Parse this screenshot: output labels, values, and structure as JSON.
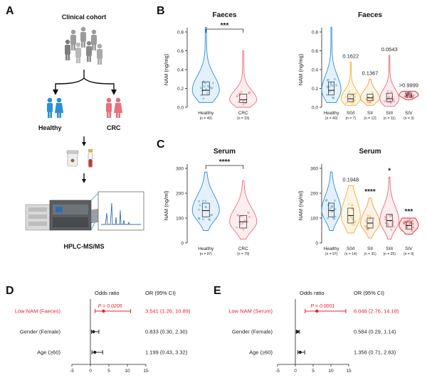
{
  "colors": {
    "healthy": "#2b8fd6",
    "crc": "#e8707a",
    "s0": "#f2b134",
    "s2": "#f0a03c",
    "s3": "#e36a7b",
    "s4": "#e0252b",
    "forest_highlight": "#e0252b",
    "axis": "#222222"
  },
  "panel_a": {
    "label": "A",
    "cohort_title": "Clinical cohort",
    "healthy_label": "Healthy",
    "crc_label": "CRC",
    "method_label": "HPLC-MS/MS"
  },
  "chart_data": [
    {
      "id": "B-left",
      "panel": "B",
      "type": "violin",
      "title": "Faeces",
      "ylabel": "NAM (ng/mg)",
      "ylim": [
        0,
        0.8
      ],
      "yticks": [
        0.0,
        0.2,
        0.4,
        0.6,
        0.8
      ],
      "groups": [
        {
          "name": "Healthy",
          "n": "(n = 40)",
          "color": "#2b8fd6",
          "min": 0.05,
          "q1": 0.13,
          "median": 0.18,
          "q3": 0.27,
          "max": 0.85
        },
        {
          "name": "CRC",
          "n": "(n = 33)",
          "color": "#e8707a",
          "min": 0.0,
          "q1": 0.05,
          "median": 0.08,
          "q3": 0.14,
          "max": 0.6
        }
      ],
      "brackets": [
        {
          "from": 0,
          "to": 1,
          "label": "***"
        }
      ],
      "annotations": []
    },
    {
      "id": "B-right",
      "panel": "",
      "type": "violin",
      "title": "Faeces",
      "ylabel": "NAM (ng/mg)",
      "ylim": [
        0,
        0.8
      ],
      "yticks": [
        0.0,
        0.2,
        0.4,
        0.6,
        0.8
      ],
      "groups": [
        {
          "name": "Healthy",
          "n": "(n = 40)",
          "color": "#2b8fd6",
          "min": 0.05,
          "q1": 0.13,
          "median": 0.18,
          "q3": 0.27,
          "max": 0.85
        },
        {
          "name": "S0/I",
          "n": "(n = 7)",
          "color": "#f2b134",
          "min": 0.02,
          "q1": 0.06,
          "median": 0.09,
          "q3": 0.14,
          "max": 0.48
        },
        {
          "name": "SII",
          "n": "(n = 12)",
          "color": "#f0a03c",
          "min": 0.02,
          "q1": 0.07,
          "median": 0.1,
          "q3": 0.14,
          "max": 0.3
        },
        {
          "name": "SIII",
          "n": "(n = 11)",
          "color": "#e36a7b",
          "min": 0.01,
          "q1": 0.06,
          "median": 0.09,
          "q3": 0.15,
          "max": 0.55
        },
        {
          "name": "SIV",
          "n": "(n = 3)",
          "color": "#e0252b",
          "min": 0.08,
          "q1": 0.11,
          "median": 0.13,
          "q3": 0.15,
          "max": 0.17
        }
      ],
      "brackets": [],
      "annotations": [
        {
          "group": 1,
          "text": "0.1622"
        },
        {
          "group": 2,
          "text": "0.1367"
        },
        {
          "group": 3,
          "text": "0.0543"
        },
        {
          "group": 4,
          "text": ">0.9999"
        }
      ]
    },
    {
      "id": "C-left",
      "panel": "C",
      "type": "violin",
      "title": "Serum",
      "ylabel": "NAM (ng/ml)",
      "ylim": [
        0,
        300
      ],
      "yticks": [
        0,
        100,
        200,
        300
      ],
      "groups": [
        {
          "name": "Healthy",
          "n": "(n = 97)",
          "color": "#2b8fd6",
          "min": 50,
          "q1": 105,
          "median": 130,
          "q3": 160,
          "max": 285
        },
        {
          "name": "CRC",
          "n": "(n = 79)",
          "color": "#e8707a",
          "min": 15,
          "q1": 60,
          "median": 85,
          "q3": 110,
          "max": 250
        }
      ],
      "brackets": [
        {
          "from": 0,
          "to": 1,
          "label": "****"
        }
      ],
      "annotations": []
    },
    {
      "id": "C-right",
      "panel": "",
      "type": "violin",
      "title": "Serum",
      "ylabel": "NAM (ng/ml)",
      "ylim": [
        0,
        300
      ],
      "yticks": [
        0,
        100,
        200,
        300
      ],
      "groups": [
        {
          "name": "Healthy",
          "n": "(n = 97)",
          "color": "#2b8fd6",
          "min": 50,
          "q1": 105,
          "median": 130,
          "q3": 160,
          "max": 285
        },
        {
          "name": "S0/I",
          "n": "(n = 14)",
          "color": "#f2b134",
          "min": 40,
          "q1": 80,
          "median": 110,
          "q3": 140,
          "max": 230
        },
        {
          "name": "SII",
          "n": "(n = 31)",
          "color": "#f0a03c",
          "min": 20,
          "q1": 60,
          "median": 80,
          "q3": 100,
          "max": 180
        },
        {
          "name": "SIII",
          "n": "(n = 25)",
          "color": "#e36a7b",
          "min": 15,
          "q1": 65,
          "median": 90,
          "q3": 115,
          "max": 265
        },
        {
          "name": "SIV",
          "n": "(n = 9)",
          "color": "#e0252b",
          "min": 35,
          "q1": 55,
          "median": 70,
          "q3": 85,
          "max": 100
        }
      ],
      "brackets": [],
      "annotations": [
        {
          "group": 1,
          "text": "0.1948"
        },
        {
          "group": 2,
          "text": "****"
        },
        {
          "group": 3,
          "text": "*"
        },
        {
          "group": 4,
          "text": "***"
        }
      ]
    },
    {
      "id": "D",
      "panel": "D",
      "type": "forest",
      "header": "Odds ratio",
      "value_header": "OR (95% CI)",
      "xlim": [
        -5,
        15
      ],
      "xticks": [
        -5,
        0,
        5,
        10,
        15
      ],
      "rows": [
        {
          "label": "Low NAM (Faeces)",
          "or": 3.541,
          "lo": 1.26,
          "hi": 10.89,
          "text": "3.541 (1.26, 10.89)",
          "p": "P = 0.0205",
          "highlight": true
        },
        {
          "label": "Gender (Female)",
          "or": 0.833,
          "lo": 0.3,
          "hi": 2.3,
          "text": "0.833 (0.30, 2.30)",
          "p": "",
          "highlight": false
        },
        {
          "label": "Age (≥60)",
          "or": 1.199,
          "lo": 0.43,
          "hi": 3.32,
          "text": "1.199 (0.43, 3.32)",
          "p": "",
          "highlight": false
        }
      ]
    },
    {
      "id": "E",
      "panel": "E",
      "type": "forest",
      "header": "Odds ratio",
      "value_header": "OR (95% CI)",
      "xlim": [
        -5,
        15
      ],
      "xticks": [
        -5,
        0,
        5,
        10,
        15
      ],
      "rows": [
        {
          "label": "Low NAM (Serum)",
          "or": 6.048,
          "lo": 2.76,
          "hi": 14.18,
          "text": "6.048 (2.76, 14.18)",
          "p": "P < 0.0001",
          "highlight": true
        },
        {
          "label": "Gender (Female)",
          "or": 0.584,
          "lo": 0.29,
          "hi": 1.14,
          "text": "0.584 (0.29, 1.14)",
          "p": "",
          "highlight": false
        },
        {
          "label": "Age (≥60)",
          "or": 1.356,
          "lo": 0.71,
          "hi": 2.63,
          "text": "1.356 (0.71, 2.63)",
          "p": "",
          "highlight": false
        }
      ]
    }
  ]
}
